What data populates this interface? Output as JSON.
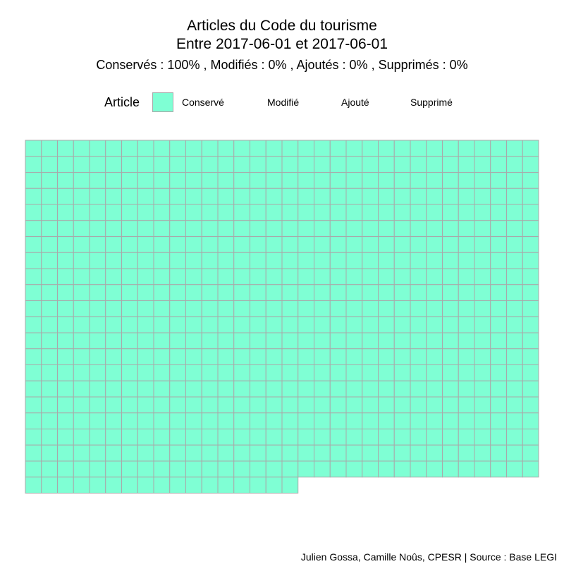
{
  "chart_data": {
    "type": "waffle",
    "title": "Articles du Code du tourisme",
    "subtitle_line": "Entre 2017-06-01 et 2017-06-01",
    "stats_line": "Conservés :  100% , Modifiés :  0% , Ajoutés :  0% , Supprimés :  0%",
    "legend": {
      "title": "Article",
      "items": [
        {
          "label": "Conservé",
          "color": "#7fffd4"
        },
        {
          "label": "Modifié",
          "color": null
        },
        {
          "label": "Ajouté",
          "color": null
        },
        {
          "label": "Supprimé",
          "color": null
        }
      ]
    },
    "series": [
      {
        "name": "Conservé",
        "count": 689,
        "color": "#7fffd4"
      },
      {
        "name": "Modifié",
        "count": 0
      },
      {
        "name": "Ajouté",
        "count": 0
      },
      {
        "name": "Supprimé",
        "count": 0
      }
    ],
    "grid_columns": 32,
    "border_color": "#a9a9a9",
    "caption": "Julien Gossa, Camille Noûs, CPESR  |  Source : Base LEGI"
  }
}
